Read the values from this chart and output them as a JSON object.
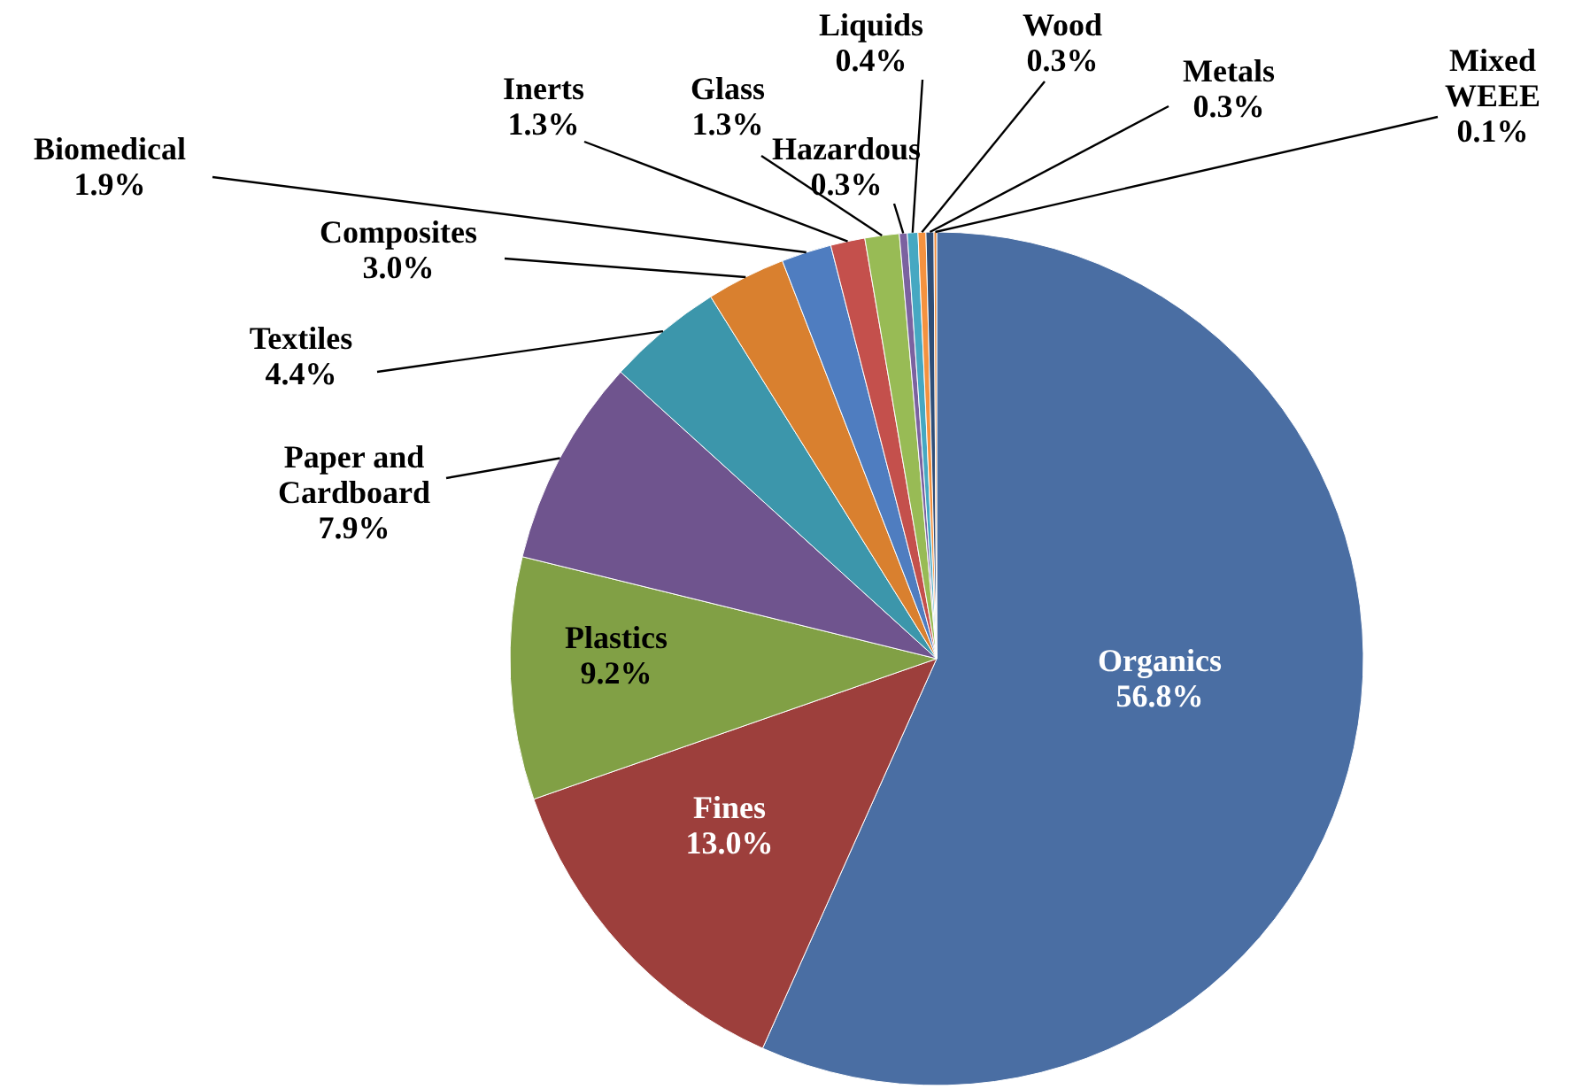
{
  "chart_data": {
    "type": "pie",
    "categories": [
      "Organics",
      "Fines",
      "Plastics",
      "Paper and Cardboard",
      "Textiles",
      "Composites",
      "Biomedical",
      "Inerts",
      "Glass",
      "Hazardous",
      "Liquids",
      "Wood",
      "Metals",
      "Mixed WEEE"
    ],
    "values": [
      56.8,
      13.0,
      9.2,
      7.9,
      4.4,
      3.0,
      1.9,
      1.3,
      1.3,
      0.3,
      0.4,
      0.3,
      0.3,
      0.1
    ],
    "colors": [
      "#4a6ea3",
      "#9d3f3c",
      "#81a045",
      "#6f548e",
      "#3c96ab",
      "#d9802f",
      "#4f7dc0",
      "#c4504c",
      "#98bb55",
      "#7b62a0",
      "#46a8c2",
      "#f5923f",
      "#2f4e78",
      "#f08a3a"
    ],
    "value_labels": [
      "56.8%",
      "13.0%",
      "9.2%",
      "7.9%",
      "4.4%",
      "3.0%",
      "1.9%",
      "1.3%",
      "1.3%",
      "0.3%",
      "0.4%",
      "0.3%",
      "0.3%",
      "0.1%"
    ]
  }
}
